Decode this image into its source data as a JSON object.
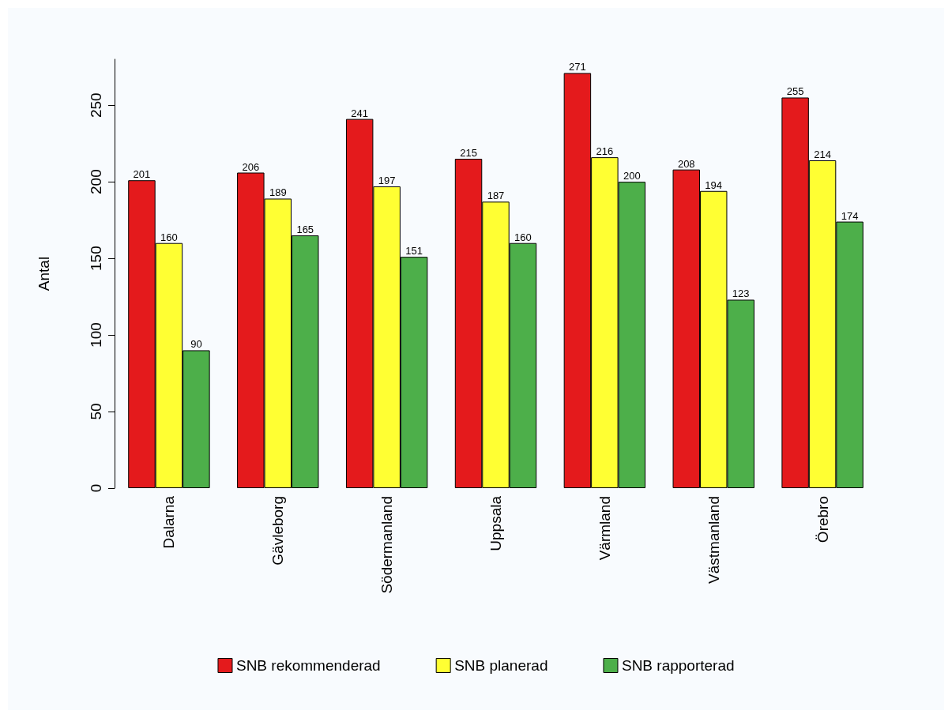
{
  "chart_data": {
    "type": "bar",
    "ylabel": "Antal",
    "categories": [
      "Dalarna",
      "Gävleborg",
      "Södermanland",
      "Uppsala",
      "Värmland",
      "Västmanland",
      "Örebro"
    ],
    "series": [
      {
        "name": "SNB rekommenderad",
        "color": "#e41a1c",
        "values": [
          201,
          206,
          241,
          215,
          271,
          208,
          255
        ]
      },
      {
        "name": "SNB planerad",
        "color": "#ffff33",
        "values": [
          160,
          189,
          197,
          187,
          216,
          194,
          214
        ]
      },
      {
        "name": "SNB rapporterad",
        "color": "#4daf4a",
        "values": [
          90,
          165,
          151,
          160,
          200,
          123,
          174
        ]
      }
    ],
    "ylim": [
      0,
      280
    ],
    "yticks": [
      0,
      50,
      100,
      150,
      200,
      250
    ],
    "grid": false,
    "legend": "bottom",
    "data_labels": true
  }
}
